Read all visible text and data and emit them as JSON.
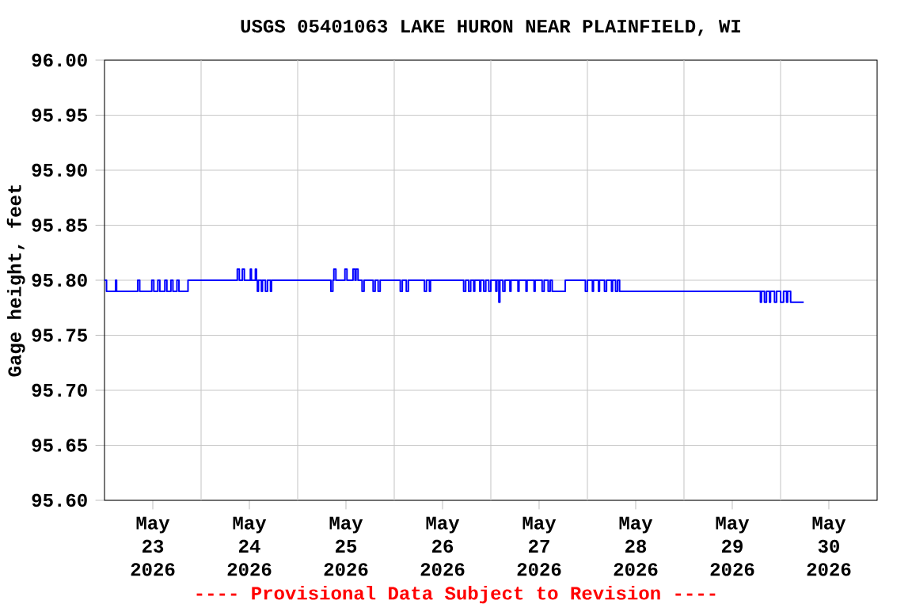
{
  "chart_data": {
    "type": "step",
    "title": "USGS 05401063 LAKE HURON NEAR PLAINFIELD, WI",
    "ylabel": "Gage height, feet",
    "annotations": [
      "---- Provisional Data Subject to Revision ----"
    ],
    "xlim": [
      "2026-05-23T00:00",
      "2026-05-31T00:00"
    ],
    "xticks": [
      {
        "value": "2026-05-23T12:00",
        "label": "May 23 2026"
      },
      {
        "value": "2026-05-24T12:00",
        "label": "May 24 2026"
      },
      {
        "value": "2026-05-25T12:00",
        "label": "May 25 2026"
      },
      {
        "value": "2026-05-26T12:00",
        "label": "May 26 2026"
      },
      {
        "value": "2026-05-27T12:00",
        "label": "May 27 2026"
      },
      {
        "value": "2026-05-28T12:00",
        "label": "May 28 2026"
      },
      {
        "value": "2026-05-29T12:00",
        "label": "May 29 2026"
      },
      {
        "value": "2026-05-30T12:00",
        "label": "May 30 2026"
      },
      {
        "value": "2026-05-24T00:00",
        "label": null
      },
      {
        "value": "2026-05-25T00:00",
        "label": null
      },
      {
        "value": "2026-05-26T00:00",
        "label": null
      },
      {
        "value": "2026-05-27T00:00",
        "label": null
      },
      {
        "value": "2026-05-28T00:00",
        "label": null
      },
      {
        "value": "2026-05-29T00:00",
        "label": null
      },
      {
        "value": "2026-05-30T00:00",
        "label": null
      }
    ],
    "ylim": [
      95.6,
      96.0
    ],
    "yticks": [
      {
        "value": 95.6,
        "label": "95.60"
      },
      {
        "value": 95.65,
        "label": "95.65"
      },
      {
        "value": 95.7,
        "label": "95.70"
      },
      {
        "value": 95.75,
        "label": "95.75"
      },
      {
        "value": 95.8,
        "label": "95.80"
      },
      {
        "value": 95.85,
        "label": "95.85"
      },
      {
        "value": 95.9,
        "label": "95.90"
      },
      {
        "value": 95.95,
        "label": "95.95"
      },
      {
        "value": 96.0,
        "label": "96.00"
      }
    ],
    "grid": true,
    "series": [
      {
        "color": "#0000ff",
        "x": [
          "2026-05-23T00:00",
          "2026-05-23T00:30",
          "2026-05-23T02:45",
          "2026-05-23T03:00",
          "2026-05-23T08:15",
          "2026-05-23T08:45",
          "2026-05-23T11:45",
          "2026-05-23T12:15",
          "2026-05-23T13:15",
          "2026-05-23T13:45",
          "2026-05-23T15:00",
          "2026-05-23T15:30",
          "2026-05-23T16:30",
          "2026-05-23T17:00",
          "2026-05-23T18:00",
          "2026-05-23T18:30",
          "2026-05-23T20:45",
          "2026-05-24T09:00",
          "2026-05-24T09:30",
          "2026-05-24T10:15",
          "2026-05-24T10:45",
          "2026-05-24T12:15",
          "2026-05-24T12:30",
          "2026-05-24T13:30",
          "2026-05-24T13:45",
          "2026-05-24T14:00",
          "2026-05-24T14:15",
          "2026-05-24T15:00",
          "2026-05-24T15:15",
          "2026-05-24T16:00",
          "2026-05-24T16:30",
          "2026-05-24T17:15",
          "2026-05-24T17:30",
          "2026-05-25T08:15",
          "2026-05-25T08:45",
          "2026-05-25T09:00",
          "2026-05-25T09:30",
          "2026-05-25T11:45",
          "2026-05-25T12:15",
          "2026-05-25T13:45",
          "2026-05-25T14:15",
          "2026-05-25T14:30",
          "2026-05-25T15:00",
          "2026-05-25T16:00",
          "2026-05-25T16:30",
          "2026-05-25T18:45",
          "2026-05-25T19:15",
          "2026-05-25T20:00",
          "2026-05-25T20:30",
          "2026-05-26T01:30",
          "2026-05-26T02:00",
          "2026-05-26T03:00",
          "2026-05-26T03:30",
          "2026-05-26T07:30",
          "2026-05-26T08:00",
          "2026-05-26T08:45",
          "2026-05-26T09:00",
          "2026-05-26T17:15",
          "2026-05-26T17:45",
          "2026-05-26T18:30",
          "2026-05-26T19:00",
          "2026-05-26T19:45",
          "2026-05-26T20:00",
          "2026-05-26T21:15",
          "2026-05-26T21:30",
          "2026-05-26T22:15",
          "2026-05-26T22:45",
          "2026-05-26T23:30",
          "2026-05-27T00:00",
          "2026-05-27T01:15",
          "2026-05-27T01:30",
          "2026-05-27T02:00",
          "2026-05-27T02:15",
          "2026-05-27T03:00",
          "2026-05-27T03:30",
          "2026-05-27T04:45",
          "2026-05-27T05:00",
          "2026-05-27T06:45",
          "2026-05-27T07:00",
          "2026-05-27T08:45",
          "2026-05-27T09:00",
          "2026-05-27T10:45",
          "2026-05-27T11:00",
          "2026-05-27T12:45",
          "2026-05-27T13:15",
          "2026-05-27T14:15",
          "2026-05-27T14:45",
          "2026-05-27T15:15",
          "2026-05-27T18:30",
          "2026-05-27T23:30",
          "2026-05-28T00:00",
          "2026-05-28T01:15",
          "2026-05-28T01:30",
          "2026-05-28T02:45",
          "2026-05-28T03:00",
          "2026-05-28T04:15",
          "2026-05-28T04:45",
          "2026-05-28T06:00",
          "2026-05-28T06:15",
          "2026-05-28T07:00",
          "2026-05-28T07:30",
          "2026-05-28T08:00",
          "2026-05-29T19:00",
          "2026-05-29T19:15",
          "2026-05-29T20:00",
          "2026-05-29T20:30",
          "2026-05-29T21:15",
          "2026-05-29T21:30",
          "2026-05-29T22:30",
          "2026-05-29T23:00",
          "2026-05-30T00:00",
          "2026-05-30T00:45",
          "2026-05-30T01:30",
          "2026-05-30T01:45",
          "2026-05-30T02:30",
          "2026-05-30T05:45"
        ],
        "values": [
          95.8,
          95.79,
          95.8,
          95.79,
          95.8,
          95.79,
          95.8,
          95.79,
          95.8,
          95.79,
          95.8,
          95.79,
          95.8,
          95.79,
          95.8,
          95.79,
          95.8,
          95.81,
          95.8,
          95.81,
          95.8,
          95.81,
          95.8,
          95.81,
          95.8,
          95.79,
          95.8,
          95.79,
          95.8,
          95.79,
          95.8,
          95.79,
          95.8,
          95.79,
          95.8,
          95.81,
          95.8,
          95.81,
          95.8,
          95.81,
          95.8,
          95.81,
          95.8,
          95.79,
          95.8,
          95.79,
          95.8,
          95.79,
          95.8,
          95.79,
          95.8,
          95.79,
          95.8,
          95.79,
          95.8,
          95.79,
          95.8,
          95.79,
          95.8,
          95.79,
          95.8,
          95.79,
          95.8,
          95.79,
          95.8,
          95.79,
          95.8,
          95.79,
          95.8,
          95.79,
          95.8,
          95.78,
          95.8,
          95.79,
          95.8,
          95.79,
          95.8,
          95.79,
          95.8,
          95.79,
          95.8,
          95.79,
          95.8,
          95.79,
          95.8,
          95.79,
          95.8,
          95.79,
          95.8,
          95.79,
          95.8,
          95.79,
          95.8,
          95.79,
          95.8,
          95.79,
          95.8,
          95.79,
          95.8,
          95.79,
          95.8,
          95.79,
          95.78,
          95.79,
          95.78,
          95.79,
          95.78,
          95.79,
          95.78,
          95.79,
          95.78,
          95.79,
          95.78,
          95.79,
          95.78,
          95.78
        ]
      }
    ]
  }
}
